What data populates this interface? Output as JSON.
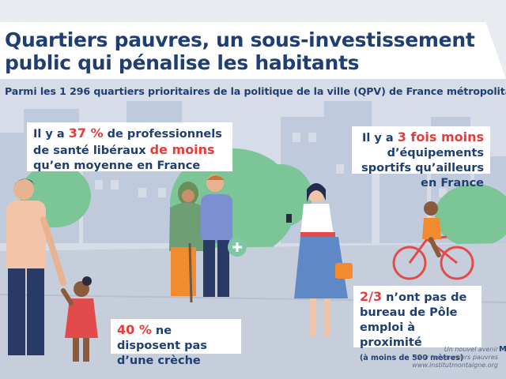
{
  "header": {
    "title": "Quartiers pauvres, un sous-investissement public qui pénalise les habitants",
    "subtitle": "Parmi les 1 296 quartiers prioritaires de la politique de la ville (QPV) de France métropolitaine"
  },
  "stats": [
    {
      "prefix": "Il y a ",
      "highlight": "37 %",
      "middle": " de professionnels de santé libéraux ",
      "highlight2": "de moins",
      "suffix": " qu’en moyenne en France",
      "value_percent": 37
    },
    {
      "prefix": "Il y a ",
      "highlight": "3 fois moins",
      "suffix": " d’équipements sportifs qu’ailleurs en France",
      "value_multiplier": 3
    },
    {
      "highlight": "40 %",
      "suffix": " ne disposent pas d’une crèche",
      "value_percent": 40
    },
    {
      "highlight": "2/3",
      "suffix": " n’ont pas de bureau de Pôle emploi à proximité",
      "note": "(à moins de 500 mètres)",
      "value_fraction": 0.6667
    }
  ],
  "footer": {
    "line1": "Un nouvel avenir",
    "line2": "pour les quartiers pauvres",
    "line3": "www.institutmontaigne.org",
    "mark": "M"
  },
  "colors": {
    "navy": "#1f3f73",
    "accent_red": "#e63c3c",
    "background": "#d6dde8",
    "building": "#b9c6da",
    "tree_green": "#77c08a",
    "ground": "#c4ccd9"
  }
}
